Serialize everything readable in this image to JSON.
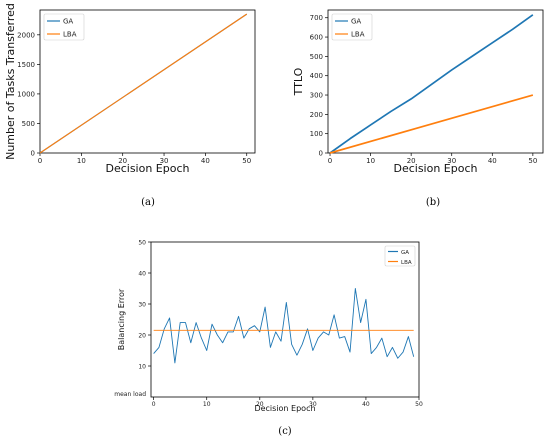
{
  "captions": [
    "(a)",
    "(b)",
    "(c)"
  ],
  "colors": {
    "GA": "#1f77b4",
    "LBA": "#ff7f0e"
  },
  "chart_data": [
    {
      "type": "line",
      "xlabel": "Decision Epoch",
      "ylabel": "Number of Tasks Transferred",
      "xlim": [
        0,
        52
      ],
      "ylim": [
        0,
        2420
      ],
      "xticks": [
        0,
        10,
        20,
        30,
        40,
        50
      ],
      "yticks": [
        0,
        500,
        1000,
        1500,
        2000
      ],
      "legend": "top-left",
      "series": [
        {
          "name": "GA",
          "x": [
            0,
            50
          ],
          "y": [
            0,
            2350
          ]
        },
        {
          "name": "LBA",
          "x": [
            0,
            50
          ],
          "y": [
            0,
            2350
          ]
        }
      ]
    },
    {
      "type": "line",
      "xlabel": "Decision Epoch",
      "ylabel": "TTLO",
      "xlim": [
        -0.5,
        52.5
      ],
      "ylim": [
        0,
        740
      ],
      "xticks": [
        0,
        10,
        20,
        30,
        40,
        50
      ],
      "yticks": [
        0,
        100,
        200,
        300,
        400,
        500,
        600,
        700
      ],
      "legend": "top-left",
      "series": [
        {
          "name": "GA",
          "x": [
            0,
            5,
            10,
            15,
            20,
            25,
            30,
            35,
            40,
            45,
            50
          ],
          "y": [
            0,
            75,
            145,
            215,
            280,
            355,
            430,
            500,
            570,
            640,
            715
          ]
        },
        {
          "name": "LBA",
          "x": [
            0,
            50
          ],
          "y": [
            0,
            300
          ]
        }
      ]
    },
    {
      "type": "line",
      "xlabel": "Decision Epoch",
      "ylabel": "Balancing Error",
      "xlim": [
        -0.5,
        50
      ],
      "ylim": [
        0,
        50
      ],
      "xticks": [
        0,
        10,
        20,
        30,
        40,
        50
      ],
      "yticks": [
        10,
        20,
        30,
        40,
        50
      ],
      "ytick_extra": "mean load",
      "legend": "top-right",
      "series": [
        {
          "name": "GA",
          "x": [
            0,
            1,
            2,
            3,
            4,
            5,
            6,
            7,
            8,
            9,
            10,
            11,
            12,
            13,
            14,
            15,
            16,
            17,
            18,
            19,
            20,
            21,
            22,
            23,
            24,
            25,
            26,
            27,
            28,
            29,
            30,
            31,
            32,
            33,
            34,
            35,
            36,
            37,
            38,
            39,
            40,
            41,
            42,
            43,
            44,
            45,
            46,
            47,
            48,
            49
          ],
          "y": [
            14,
            16,
            22,
            25.5,
            11,
            24,
            24,
            17.5,
            24,
            19,
            15,
            23.5,
            20,
            17.5,
            21,
            21,
            26,
            19,
            22,
            23,
            21,
            29,
            16,
            21,
            18,
            30.5,
            17,
            13.5,
            17,
            22,
            15,
            19,
            21,
            20,
            26.5,
            19,
            19.5,
            14.5,
            35,
            24,
            31.5,
            14,
            16,
            19,
            13,
            16,
            12.5,
            14.5,
            19.5,
            13
          ]
        },
        {
          "name": "LBA",
          "x": [
            0,
            49
          ],
          "y": [
            21.5,
            21.5
          ]
        }
      ]
    }
  ]
}
